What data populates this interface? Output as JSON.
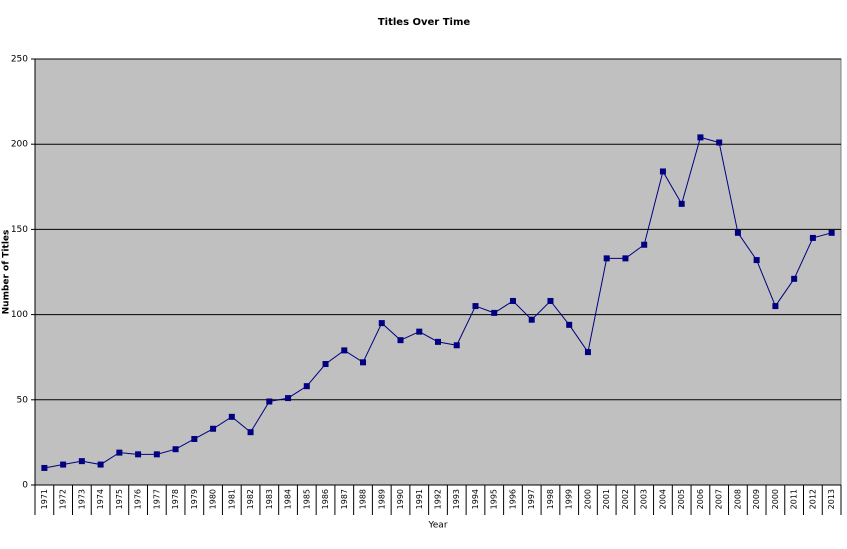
{
  "chart_data": {
    "type": "line",
    "title": "Titles Over Time",
    "x_label": "Year",
    "y_label": "Number of Titles",
    "categories": [
      "1971",
      "1972",
      "1973",
      "1974",
      "1975",
      "1976",
      "1977",
      "1978",
      "1979",
      "1980",
      "1981",
      "1982",
      "1983",
      "1984",
      "1985",
      "1986",
      "1987",
      "1988",
      "1989",
      "1990",
      "1991",
      "1992",
      "1993",
      "1994",
      "1995",
      "1996",
      "1997",
      "1998",
      "1999",
      "2000",
      "2001",
      "2002",
      "2003",
      "2004",
      "2005",
      "2006",
      "2007",
      "2008",
      "2009",
      "2000",
      "2011",
      "2012",
      "2013"
    ],
    "series": [
      {
        "name": "Titles",
        "color": "#000080",
        "values": [
          10,
          12,
          14,
          12,
          19,
          18,
          18,
          21,
          27,
          33,
          40,
          31,
          49,
          51,
          58,
          71,
          79,
          72,
          95,
          85,
          90,
          84,
          82,
          105,
          101,
          108,
          97,
          108,
          94,
          78,
          133,
          133,
          141,
          184,
          165,
          204,
          201,
          148,
          132,
          105,
          121,
          145,
          148
        ]
      }
    ],
    "ylim": [
      0,
      250
    ],
    "yticks": [
      0,
      50,
      100,
      150,
      200,
      250
    ],
    "grid": true,
    "plot_background": "#c0c0c0"
  }
}
